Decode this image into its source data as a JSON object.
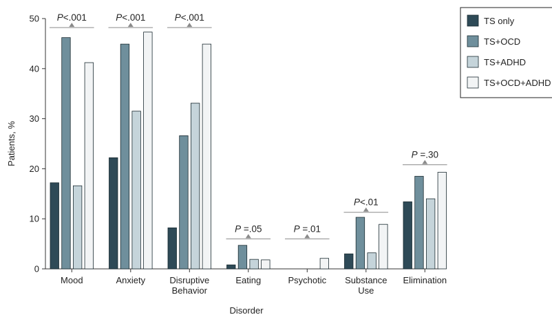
{
  "chart_data": {
    "type": "bar",
    "title": "",
    "xlabel": "Disorder",
    "ylabel": "Patients, %",
    "ylim": [
      0,
      50
    ],
    "yticks": [
      "0",
      "10",
      "20",
      "30",
      "40",
      "50"
    ],
    "grid": false,
    "legend_position": "top-right",
    "categories": [
      [
        "Mood"
      ],
      [
        "Anxiety"
      ],
      [
        "Disruptive",
        "Behavior"
      ],
      [
        "Eating"
      ],
      [
        "Psychotic"
      ],
      [
        "Substance",
        "Use"
      ],
      [
        "Elimination"
      ]
    ],
    "series": [
      {
        "name": "TS only",
        "color": "#2e4a57",
        "values": [
          17.2,
          22.2,
          8.2,
          0.8,
          0,
          3.0,
          13.4
        ]
      },
      {
        "name": "TS+OCD",
        "color": "#6f8f9c",
        "values": [
          46.2,
          44.9,
          26.6,
          4.7,
          0,
          10.3,
          18.5
        ]
      },
      {
        "name": "TS+ADHD",
        "color": "#c5d4da",
        "values": [
          16.6,
          31.5,
          33.1,
          1.9,
          0,
          3.2,
          14.0
        ]
      },
      {
        "name": "TS+OCD+ADHD",
        "color": "#f2f4f5",
        "values": [
          41.2,
          47.3,
          44.9,
          1.8,
          2.1,
          8.9,
          19.3
        ]
      }
    ],
    "p_values": [
      {
        "p": "P",
        "rest": "<.001",
        "level": 48.2
      },
      {
        "p": "P",
        "rest": "<.001",
        "level": 48.2
      },
      {
        "p": "P",
        "rest": "<.001",
        "level": 48.2
      },
      {
        "p": "P",
        "rest": " =.05",
        "level": 6.0
      },
      {
        "p": "P",
        "rest": " =.01",
        "level": 6.0
      },
      {
        "p": "P",
        "rest": "<.01",
        "level": 11.3
      },
      {
        "p": "P",
        "rest": " =.30",
        "level": 20.8
      }
    ],
    "colors": {
      "bar_stroke": "#1a2a30",
      "bracket": "#8a8a8a",
      "axis": "#333333"
    }
  }
}
